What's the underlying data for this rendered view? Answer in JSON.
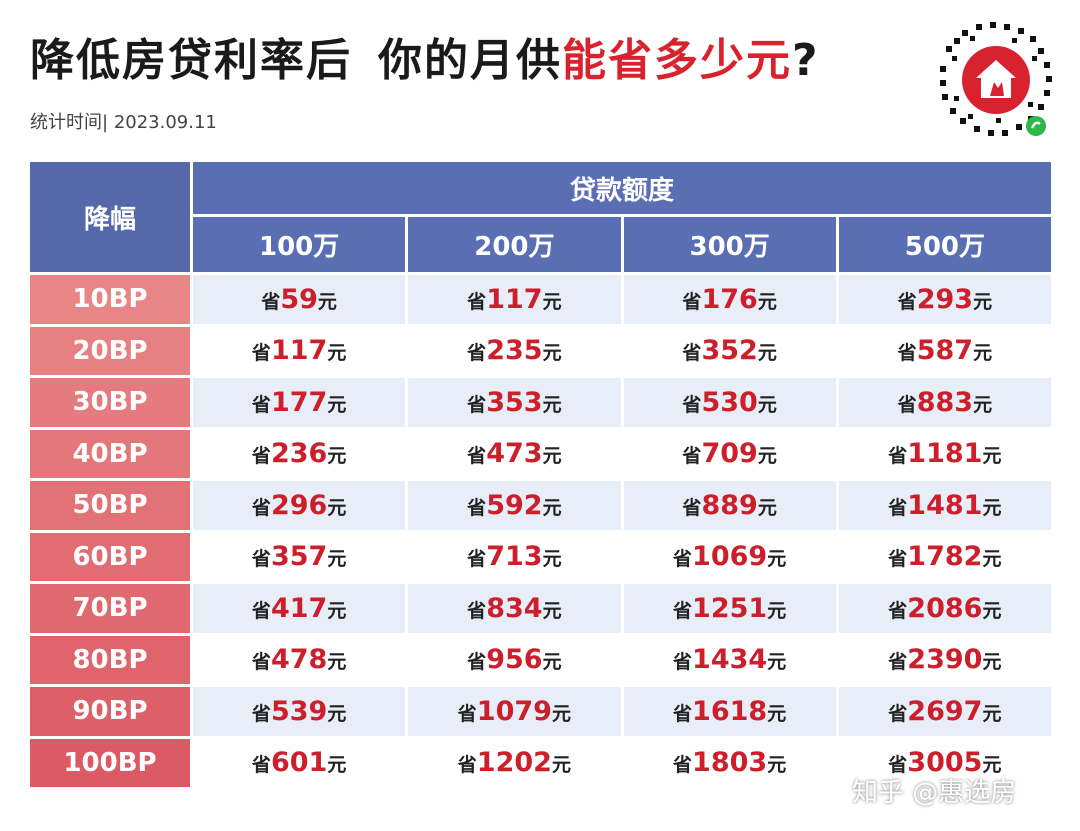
{
  "title": {
    "part1": "降低房贷利率后",
    "part2": "你的月供",
    "highlight": "能省多少元",
    "end": "?"
  },
  "stat": {
    "label": "统计时间|",
    "date": "2023.09.11"
  },
  "table": {
    "corner": "降幅",
    "group_header": "贷款额度",
    "columns": [
      "100万",
      "200万",
      "300万",
      "500万"
    ],
    "prefix": "省",
    "suffix": "元",
    "rows": [
      {
        "label": "10BP",
        "values": [
          "59",
          "117",
          "176",
          "293"
        ]
      },
      {
        "label": "20BP",
        "values": [
          "117",
          "235",
          "352",
          "587"
        ]
      },
      {
        "label": "30BP",
        "values": [
          "177",
          "353",
          "530",
          "883"
        ]
      },
      {
        "label": "40BP",
        "values": [
          "236",
          "473",
          "709",
          "1181"
        ]
      },
      {
        "label": "50BP",
        "values": [
          "296",
          "592",
          "889",
          "1481"
        ]
      },
      {
        "label": "60BP",
        "values": [
          "357",
          "713",
          "1069",
          "1782"
        ]
      },
      {
        "label": "70BP",
        "values": [
          "417",
          "834",
          "1251",
          "2086"
        ]
      },
      {
        "label": "80BP",
        "values": [
          "478",
          "956",
          "1434",
          "2390"
        ]
      },
      {
        "label": "90BP",
        "values": [
          "539",
          "1079",
          "1618",
          "2697"
        ]
      },
      {
        "label": "100BP",
        "values": [
          "601",
          "1202",
          "1803",
          "3005"
        ]
      }
    ]
  },
  "watermark": {
    "text": "知乎 @惠选房"
  },
  "colors": {
    "header_blue": "#5a6fb3",
    "accent_red": "#d8232f",
    "row_label_top": "#e88585",
    "row_label_bottom": "#dc5a64",
    "stripe": "#e8eef8"
  }
}
